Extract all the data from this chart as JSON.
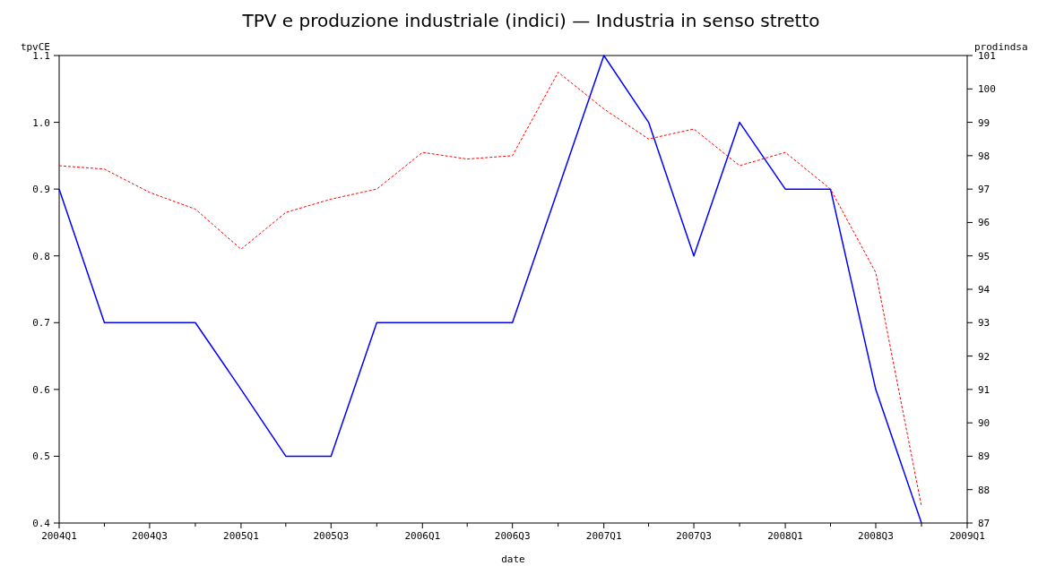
{
  "chart_data": {
    "type": "line",
    "title": "TPV e produzione industriale (indici) — Industria in senso stretto",
    "xlabel": "date",
    "ylabel": "tpvCE",
    "y2label": "prodindsa",
    "x": [
      "2004-01",
      "2004-04",
      "2004-07",
      "2004-10",
      "2005-01",
      "2005-04",
      "2005-07",
      "2005-10",
      "2006-01",
      "2006-04",
      "2006-07",
      "2006-10",
      "2007-01",
      "2007-04",
      "2007-07",
      "2007-10",
      "2008-01",
      "2008-04",
      "2008-07",
      "2008-10"
    ],
    "series": [
      {
        "color": "#0000ff",
        "line_style": "solid",
        "values": [
          0.9,
          0.7,
          0.7,
          0.7,
          0.6,
          0.5,
          0.5,
          0.7,
          0.7,
          0.7,
          0.7,
          0.9,
          1.1,
          1.0,
          0.8,
          1.0,
          0.9,
          0.9,
          0.6,
          0.4
        ]
      },
      {
        "color": "#ff0000",
        "line_style": "dashed",
        "axis": "y2",
        "values": [
          97.7,
          97.6,
          96.9,
          96.4,
          95.2,
          96.3,
          96.7,
          97.0,
          98.1,
          97.9,
          98.0,
          100.5,
          99.4,
          98.5,
          98.8,
          97.7,
          98.1,
          97.0,
          94.5,
          87.5
        ]
      }
    ],
    "xlim": [
      "2004-01",
      "2009-01"
    ],
    "xticks": [
      {
        "value": "2004-01",
        "label": "2004Q1"
      },
      {
        "value": "2004-04",
        "label": null
      },
      {
        "value": "2004-07",
        "label": "2004Q3"
      },
      {
        "value": "2004-10",
        "label": null
      },
      {
        "value": "2005-01",
        "label": "2005Q1"
      },
      {
        "value": "2005-04",
        "label": null
      },
      {
        "value": "2005-07",
        "label": "2005Q3"
      },
      {
        "value": "2005-10",
        "label": null
      },
      {
        "value": "2006-01",
        "label": "2006Q1"
      },
      {
        "value": "2006-04",
        "label": null
      },
      {
        "value": "2006-07",
        "label": "2006Q3"
      },
      {
        "value": "2006-10",
        "label": null
      },
      {
        "value": "2007-01",
        "label": "2007Q1"
      },
      {
        "value": "2007-04",
        "label": null
      },
      {
        "value": "2007-07",
        "label": "2007Q3"
      },
      {
        "value": "2007-10",
        "label": null
      },
      {
        "value": "2008-01",
        "label": "2008Q1"
      },
      {
        "value": "2008-04",
        "label": null
      },
      {
        "value": "2008-07",
        "label": "2008Q3"
      },
      {
        "value": "2008-10",
        "label": null
      },
      {
        "value": "2009-01",
        "label": "2009Q1"
      }
    ],
    "ylim": [
      0.4,
      1.1
    ],
    "yticks": [
      {
        "value": 0.4,
        "label": "0.4"
      },
      {
        "value": 0.5,
        "label": "0.5"
      },
      {
        "value": 0.6,
        "label": "0.6"
      },
      {
        "value": 0.7,
        "label": "0.7"
      },
      {
        "value": 0.8,
        "label": "0.8"
      },
      {
        "value": 0.9,
        "label": "0.9"
      },
      {
        "value": 1.0,
        "label": "1.0"
      },
      {
        "value": 1.1,
        "label": "1.1"
      }
    ],
    "y2lim": [
      87,
      101
    ],
    "y2ticks": [
      87,
      88,
      89,
      90,
      91,
      92,
      93,
      94,
      95,
      96,
      97,
      98,
      99,
      100,
      101
    ],
    "grid": false,
    "marker": "none"
  }
}
